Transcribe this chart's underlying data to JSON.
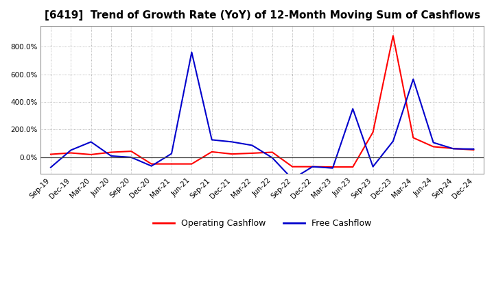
{
  "title": "[6419]  Trend of Growth Rate (YoY) of 12-Month Moving Sum of Cashflows",
  "x_labels": [
    "Sep-19",
    "Dec-19",
    "Mar-20",
    "Jun-20",
    "Sep-20",
    "Dec-20",
    "Mar-21",
    "Jun-21",
    "Sep-21",
    "Dec-21",
    "Mar-22",
    "Jun-22",
    "Sep-22",
    "Dec-22",
    "Mar-23",
    "Jun-23",
    "Sep-23",
    "Dec-23",
    "Mar-24",
    "Jun-24",
    "Sep-24",
    "Dec-24"
  ],
  "operating_cashflow": [
    20,
    30,
    18,
    35,
    42,
    -50,
    -50,
    -50,
    38,
    22,
    28,
    35,
    -70,
    -70,
    -72,
    -72,
    180,
    880,
    140,
    75,
    62,
    52
  ],
  "free_cashflow": [
    -75,
    50,
    110,
    8,
    -2,
    -65,
    25,
    760,
    125,
    110,
    85,
    -5,
    -160,
    -70,
    -80,
    350,
    -70,
    115,
    565,
    105,
    60,
    58
  ],
  "operating_color": "#ff0000",
  "free_color": "#0000cc",
  "background_color": "#ffffff",
  "grid_color": "#888888",
  "ylim": [
    -120,
    950
  ],
  "yticks": [
    0,
    200,
    400,
    600,
    800
  ],
  "legend_labels": [
    "Operating Cashflow",
    "Free Cashflow"
  ],
  "title_fontsize": 11,
  "tick_fontsize": 7.5,
  "legend_fontsize": 9
}
